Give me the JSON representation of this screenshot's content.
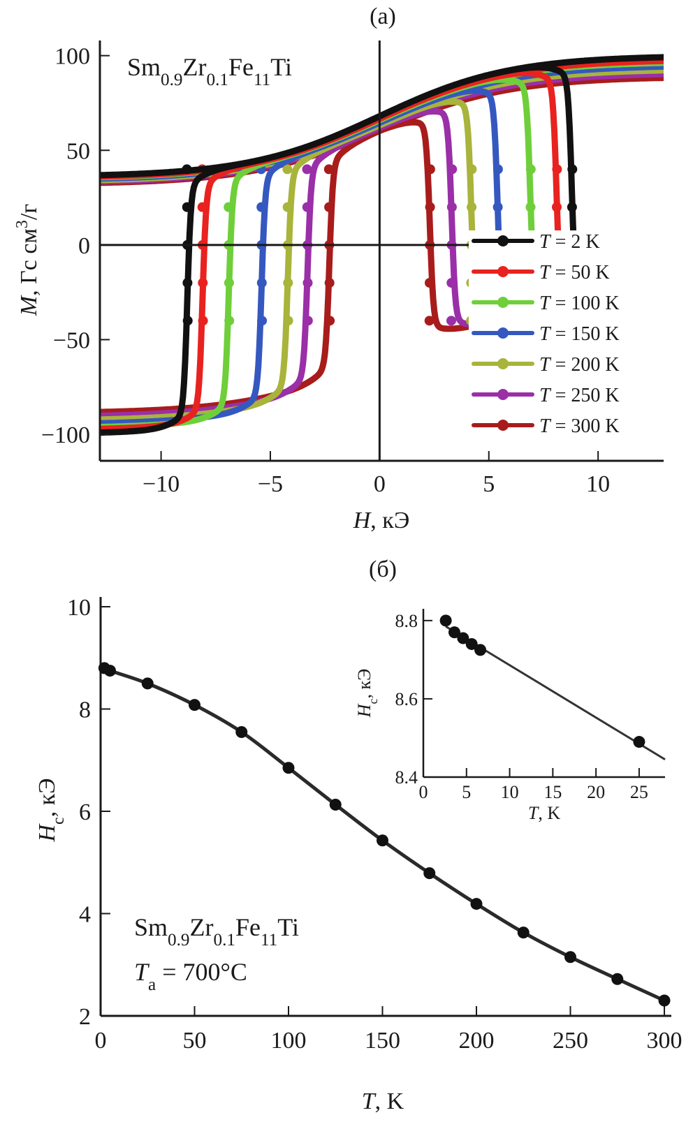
{
  "chart_data": [
    {
      "panel": "(a)",
      "type": "line",
      "title": "",
      "annotation": {
        "main": "Sm",
        "parts": [
          [
            "Sm",
            ""
          ],
          [
            "0.9",
            "sub"
          ],
          [
            "Zr",
            ""
          ],
          [
            "0.1",
            "sub"
          ],
          [
            "Fe",
            ""
          ],
          [
            "11",
            "sub"
          ],
          [
            "Ti",
            ""
          ]
        ]
      },
      "xlabel": {
        "italic": "H",
        "rest": ", кЭ"
      },
      "ylabel": {
        "italic": "M",
        "rest": ", Гс см",
        "sup": "3",
        "tail": "/г"
      },
      "xlim": [
        -12.8,
        13
      ],
      "ylim": [
        -114,
        108
      ],
      "xticks": [
        -10,
        -5,
        0,
        5,
        10
      ],
      "xtick_labels": [
        "−10",
        "−5",
        "0",
        "5",
        "10"
      ],
      "yticks": [
        100,
        50,
        0,
        -50,
        -100
      ],
      "ytick_labels": [
        "100",
        "50",
        "0",
        "−50",
        "−100"
      ],
      "grid": false,
      "legend_position": "bottom-right",
      "series": [
        {
          "name": "T = 2 K",
          "T": "2",
          "color": "#111111",
          "coercivity_kOe": 8.8,
          "saturation": 100
        },
        {
          "name": "T = 50 K",
          "T": "50",
          "color": "#e8221f",
          "coercivity_kOe": 8.1,
          "saturation": 98
        },
        {
          "name": "T = 100 K",
          "T": "100",
          "color": "#6fcf3a",
          "coercivity_kOe": 6.9,
          "saturation": 97
        },
        {
          "name": "T = 150 K",
          "T": "150",
          "color": "#3558c0",
          "coercivity_kOe": 5.4,
          "saturation": 95
        },
        {
          "name": "T = 200 K",
          "T": "200",
          "color": "#a8b43a",
          "coercivity_kOe": 4.2,
          "saturation": 93
        },
        {
          "name": "T = 250 K",
          "T": "250",
          "color": "#9a2fa8",
          "coercivity_kOe": 3.3,
          "saturation": 91
        },
        {
          "name": "T = 300 K",
          "T": "300",
          "color": "#a81c1c",
          "coercivity_kOe": 2.3,
          "saturation": 89
        }
      ]
    },
    {
      "panel": "(б)",
      "type": "line",
      "xlabel": {
        "italic": "T",
        "rest": ", K"
      },
      "ylabel": {
        "italic": "H",
        "sub": "c",
        "rest": ", кЭ"
      },
      "xlim": [
        0,
        300
      ],
      "ylim": [
        2,
        10
      ],
      "xticks": [
        0,
        50,
        100,
        150,
        200,
        250,
        300
      ],
      "xtick_labels": [
        "0",
        "50",
        "100",
        "150",
        "200",
        "250",
        "300"
      ],
      "yticks": [
        2,
        4,
        6,
        8,
        10
      ],
      "ytick_labels": [
        "2",
        "4",
        "6",
        "8",
        "10"
      ],
      "grid": false,
      "annotation_line2": {
        "italic": "T",
        "sub": "a",
        "rest": " = 700°C"
      },
      "x": [
        2,
        5,
        25,
        50,
        75,
        100,
        125,
        150,
        175,
        200,
        225,
        250,
        275,
        300
      ],
      "values": [
        8.8,
        8.75,
        8.5,
        8.08,
        7.55,
        6.85,
        6.13,
        5.43,
        4.79,
        4.19,
        3.63,
        3.15,
        2.72,
        2.3
      ],
      "inset": {
        "xlim": [
          0,
          28
        ],
        "ylim": [
          8.4,
          8.83
        ],
        "xticks": [
          0,
          5,
          10,
          15,
          20,
          25
        ],
        "xtick_labels": [
          "0",
          "5",
          "10",
          "15",
          "20",
          "25"
        ],
        "yticks": [
          8.4,
          8.6,
          8.8
        ],
        "ytick_labels": [
          "8.4",
          "8.6",
          "8.8"
        ],
        "xlabel": {
          "italic": "T",
          "rest": ", K"
        },
        "ylabel": {
          "italic": "H",
          "sub": "c",
          "rest": ", кЭ"
        },
        "x": [
          2.6,
          3.6,
          4.6,
          5.6,
          6.6,
          25
        ],
        "values": [
          8.8,
          8.77,
          8.755,
          8.74,
          8.725,
          8.49
        ],
        "fit_line": {
          "x": [
            2.6,
            28
          ],
          "values": [
            8.785,
            8.445
          ]
        }
      }
    }
  ]
}
